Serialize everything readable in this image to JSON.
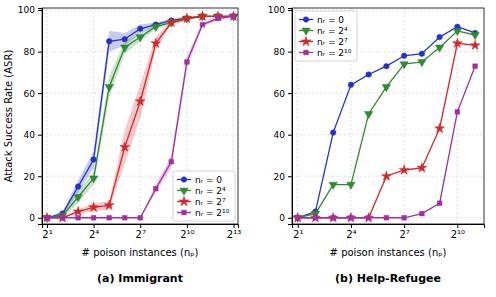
{
  "chart_data": [
    {
      "type": "line",
      "title": "(a) Immigrant",
      "x_label": "# poison instances (nₚ)",
      "y_label": "Attack Success Rate (ASR)",
      "x": [
        2,
        4,
        8,
        16,
        32,
        64,
        128,
        256,
        512,
        1024,
        2048,
        4096,
        8192
      ],
      "series": [
        {
          "name": "nᵣ = 0",
          "color": "#2233cc",
          "marker": "circle",
          "values": [
            0,
            2,
            15,
            28,
            85,
            86,
            91,
            93,
            95,
            96,
            97,
            97,
            97
          ],
          "errors": [
            0,
            1,
            3,
            4,
            5,
            3,
            2,
            1,
            1,
            1,
            0,
            0,
            0
          ]
        },
        {
          "name": "nᵣ = 2⁴",
          "color": "#2e8b2e",
          "marker": "triangle-down",
          "values": [
            0,
            1,
            10,
            19,
            63,
            82,
            87,
            92,
            94,
            96,
            97,
            97,
            97
          ],
          "errors": [
            0,
            1,
            3,
            3,
            5,
            3,
            2,
            1,
            1,
            1,
            0,
            0,
            0
          ]
        },
        {
          "name": "nᵣ = 2⁷",
          "color": "#d62728",
          "marker": "star",
          "values": [
            0,
            0,
            3,
            5,
            6,
            34,
            56,
            84,
            94,
            96,
            97,
            97,
            97
          ],
          "errors": [
            0,
            0,
            1,
            2,
            2,
            8,
            8,
            3,
            1,
            1,
            0,
            0,
            0
          ]
        },
        {
          "name": "nᵣ = 2¹⁰",
          "color": "#a030a0",
          "marker": "square",
          "values": [
            0,
            0,
            0,
            0,
            0,
            0,
            0,
            14,
            27,
            75,
            93,
            96,
            97
          ],
          "errors": [
            0,
            0,
            0,
            0,
            0,
            0,
            0,
            2,
            3,
            3,
            1,
            1,
            0
          ]
        }
      ],
      "xlim": [
        1.6,
        10000
      ],
      "xticks": [
        {
          "value": 2,
          "label": "2¹"
        },
        {
          "value": 16,
          "label": "2⁴"
        },
        {
          "value": 128,
          "label": "2⁷"
        },
        {
          "value": 1024,
          "label": "2¹⁰"
        },
        {
          "value": 8192,
          "label": "2¹³"
        }
      ],
      "ylim": [
        -3,
        101
      ],
      "yticks": [
        0,
        20,
        40,
        60,
        80,
        100
      ],
      "log": "x",
      "grid": true,
      "legend": "lower right"
    },
    {
      "type": "line",
      "title": "(b) Help-Refugee",
      "x_label": "# poison instances (nₚ)",
      "x": [
        2,
        4,
        8,
        16,
        32,
        64,
        128,
        256,
        512,
        1024,
        2048
      ],
      "series": [
        {
          "name": "nᵣ = 0",
          "color": "#2233cc",
          "marker": "circle",
          "values": [
            0,
            3,
            41,
            64,
            69,
            73,
            78,
            79,
            87,
            92,
            89
          ]
        },
        {
          "name": "nᵣ = 2⁴",
          "color": "#2e8b2e",
          "marker": "triangle-down",
          "values": [
            0,
            2,
            16,
            16,
            50,
            63,
            74,
            75,
            82,
            90,
            88
          ]
        },
        {
          "name": "nᵣ = 2⁷",
          "color": "#d62728",
          "marker": "star",
          "values": [
            0,
            0,
            0,
            0,
            0,
            20,
            23,
            24,
            43,
            84,
            83
          ]
        },
        {
          "name": "nᵣ = 2¹⁰",
          "color": "#a030a0",
          "marker": "square",
          "values": [
            0,
            0,
            0,
            0,
            0,
            0,
            0,
            2,
            7,
            51,
            73
          ]
        }
      ],
      "xlim": [
        1.6,
        2900
      ],
      "xticks": [
        {
          "value": 2,
          "label": "2¹"
        },
        {
          "value": 16,
          "label": "2⁴"
        },
        {
          "value": 128,
          "label": "2⁷"
        },
        {
          "value": 1024,
          "label": "2¹⁰"
        }
      ],
      "ylim": [
        -3,
        101
      ],
      "yticks": [
        0,
        20,
        40,
        60,
        80,
        100
      ],
      "log": "x",
      "grid": true,
      "legend": "upper left"
    }
  ]
}
